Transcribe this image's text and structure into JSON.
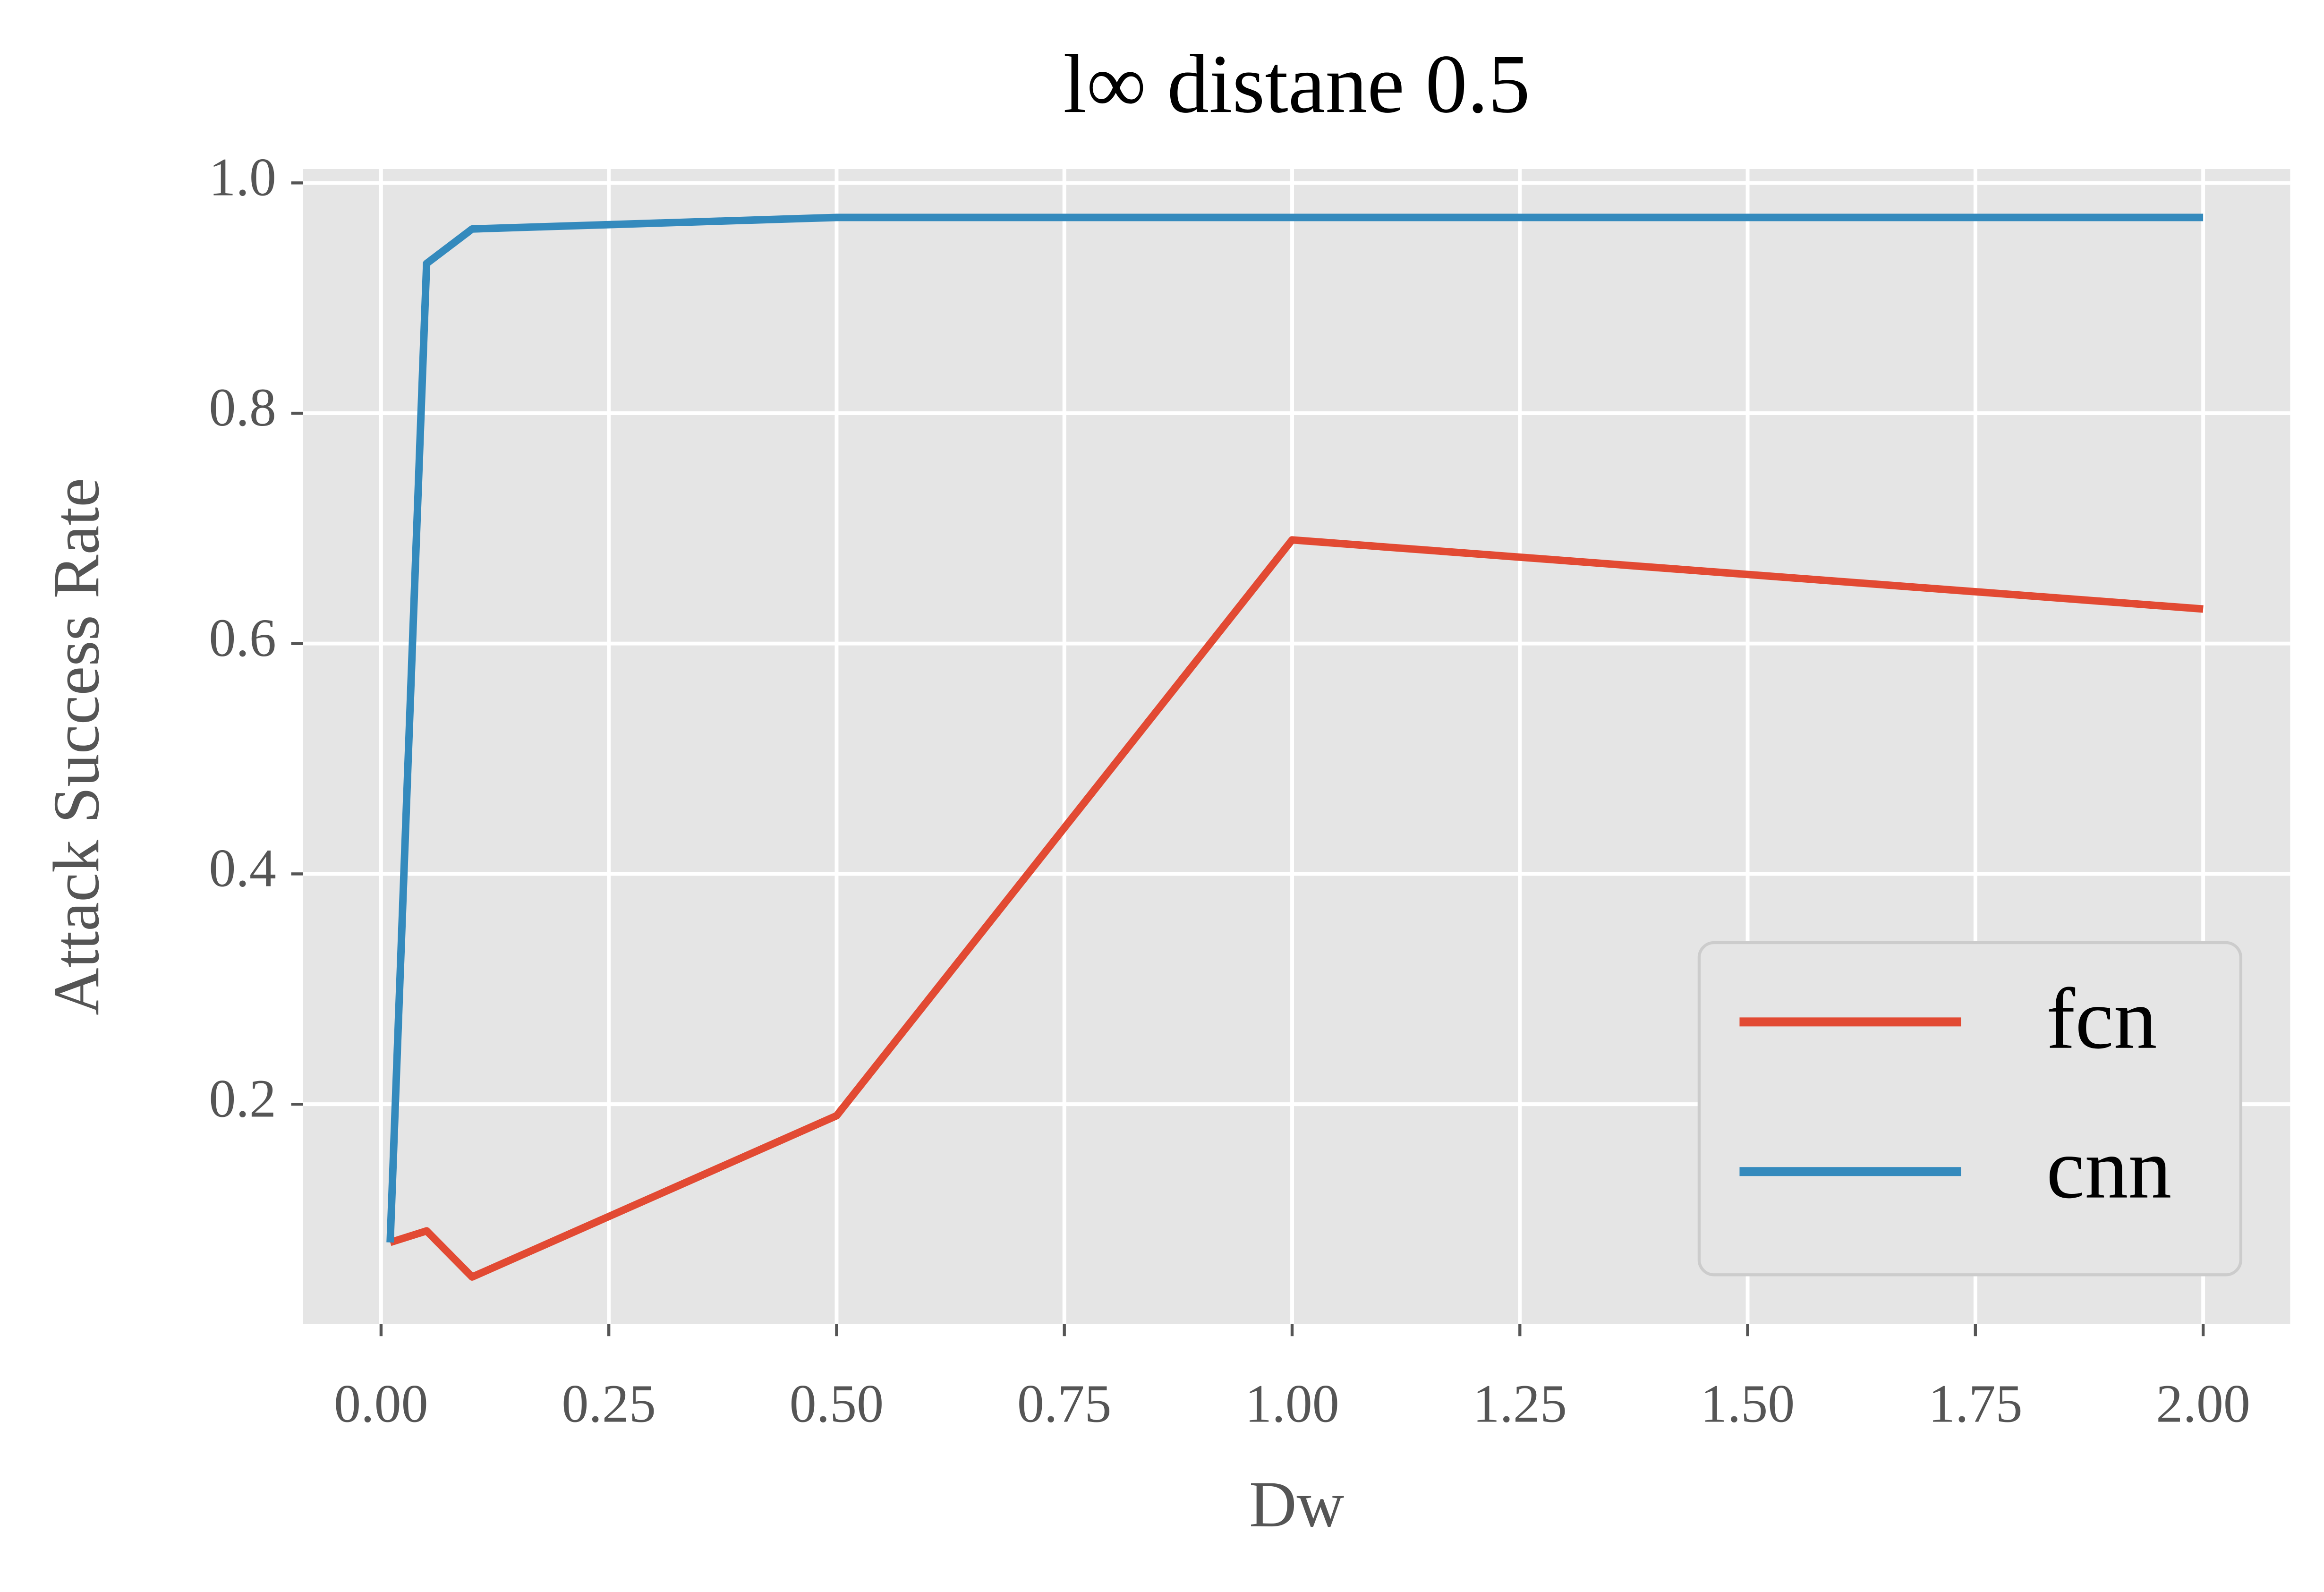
{
  "chart_data": {
    "type": "line",
    "title": "l∞ distane 0.5",
    "xlabel": "Dw",
    "ylabel": "Attack Success Rate",
    "x": [
      0.01,
      0.05,
      0.1,
      0.5,
      1.0,
      2.0
    ],
    "series": [
      {
        "name": "fcn",
        "color": "#E24A33",
        "values": [
          0.08,
          0.09,
          0.05,
          0.19,
          0.69,
          0.63
        ]
      },
      {
        "name": "cnn",
        "color": "#348ABD",
        "values": [
          0.08,
          0.93,
          0.96,
          0.97,
          0.97,
          0.97
        ]
      }
    ],
    "xlim": [
      -0.0855,
      2.0955
    ],
    "ylim": [
      0.009,
      1.012
    ],
    "xticks": [
      {
        "value": 0,
        "label": "0.00"
      },
      {
        "value": 0.25,
        "label": "0.25"
      },
      {
        "value": 0.5,
        "label": "0.50"
      },
      {
        "value": 0.75,
        "label": "0.75"
      },
      {
        "value": 1,
        "label": "1.00"
      },
      {
        "value": 1.25,
        "label": "1.25"
      },
      {
        "value": 1.5,
        "label": "1.50"
      },
      {
        "value": 1.75,
        "label": "1.75"
      },
      {
        "value": 2,
        "label": "2.00"
      }
    ],
    "yticks": [
      0.2,
      0.4,
      0.6,
      0.8,
      {
        "value": 1,
        "label": "1.0"
      }
    ],
    "grid": true,
    "legend": "lower right"
  }
}
